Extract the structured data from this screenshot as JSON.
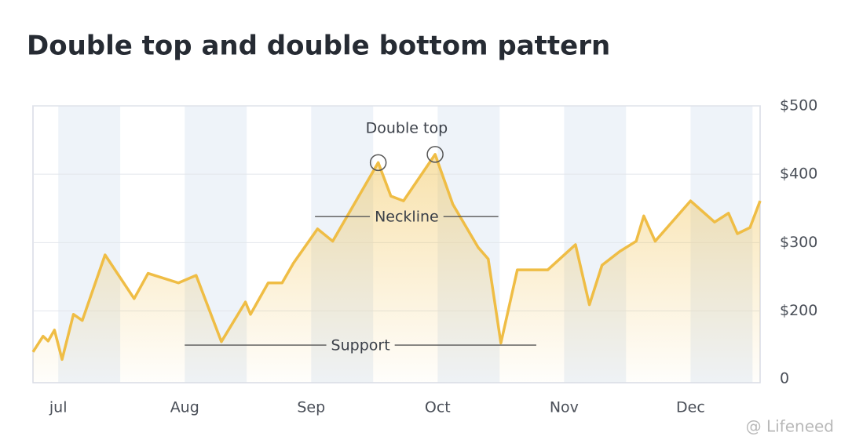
{
  "chart_data": {
    "type": "line",
    "title": "Double top and double bottom pattern",
    "x": [
      -0.2,
      -0.12,
      -0.08,
      -0.03,
      0.03,
      0.12,
      0.19,
      0.37,
      0.6,
      0.71,
      0.95,
      1.09,
      1.29,
      1.48,
      1.52,
      1.66,
      1.77,
      1.86,
      2.05,
      2.17,
      2.53,
      2.63,
      2.73,
      2.98,
      3.12,
      3.32,
      3.4,
      3.5,
      3.63,
      3.87,
      4.09,
      4.2,
      4.3,
      4.44,
      4.57,
      4.63,
      4.72,
      5.0,
      5.19,
      5.3,
      5.37,
      5.47,
      5.55
    ],
    "series": [
      {
        "color": "#efbd45",
        "values": [
          140,
          163,
          156,
          172,
          129,
          195,
          186,
          282,
          218,
          255,
          241,
          252,
          155,
          213,
          195,
          241,
          241,
          270,
          320,
          302,
          417,
          368,
          361,
          429,
          356,
          293,
          276,
          153,
          260,
          260,
          297,
          209,
          267,
          287,
          302,
          339,
          302,
          361,
          330,
          343,
          313,
          322,
          361
        ]
      }
    ],
    "xlim": [
      -0.2,
      5.55
    ],
    "xticks": [
      {
        "value": 0,
        "label": "jul"
      },
      {
        "value": 1,
        "label": "Aug"
      },
      {
        "value": 2,
        "label": "Sep"
      },
      {
        "value": 3,
        "label": "Oct"
      },
      {
        "value": 4,
        "label": "Nov"
      },
      {
        "value": 5,
        "label": "Dec"
      }
    ],
    "ylim": [
      95,
      500
    ],
    "yticks": [
      {
        "value": 200,
        "label": "$200"
      },
      {
        "value": 300,
        "label": "$300"
      },
      {
        "value": 400,
        "label": "$400"
      },
      {
        "value": 500,
        "label": "$500"
      }
    ],
    "y_axis_bottom_label": "0",
    "grid": true,
    "annotations": [
      {
        "text": "Double top",
        "x": [
          2.53,
          2.98
        ],
        "y": [
          417,
          429
        ]
      },
      {
        "text": "Neckline",
        "x": [
          2.03,
          3.48
        ],
        "y": 338
      },
      {
        "text": "Support",
        "x": [
          1.0,
          3.78
        ],
        "y": 150
      }
    ]
  },
  "watermark": "@ Lifeneed"
}
